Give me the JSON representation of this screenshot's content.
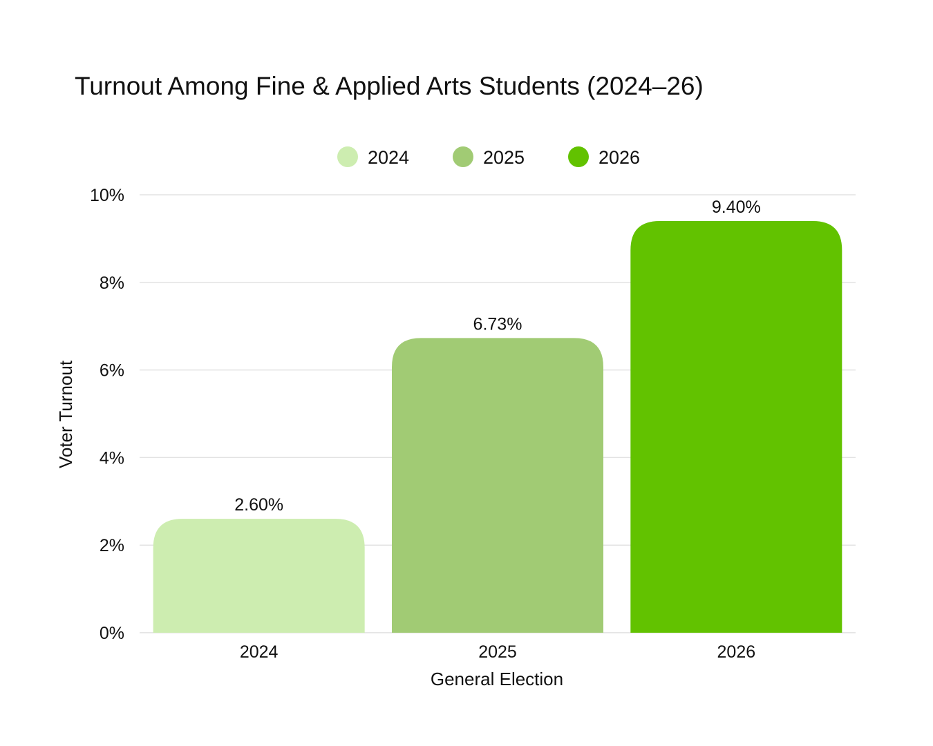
{
  "chart_data": {
    "type": "bar",
    "title": "Turnout Among Fine & Applied Arts Students (2024–26)",
    "xlabel": "General Election",
    "ylabel": "Voter Turnout",
    "categories": [
      "2024",
      "2025",
      "2026"
    ],
    "values": [
      2.6,
      6.73,
      9.4
    ],
    "value_labels": [
      "2.60%",
      "6.73%",
      "9.40%"
    ],
    "colors": [
      "#cdedb0",
      "#a1cb74",
      "#62c200"
    ],
    "ylim": [
      0,
      10
    ],
    "yticks": [
      0,
      2,
      4,
      6,
      8,
      10
    ],
    "ytick_labels": [
      "0%",
      "2%",
      "4%",
      "6%",
      "8%",
      "10%"
    ],
    "legend": {
      "position": "top",
      "entries": [
        "2024",
        "2025",
        "2026"
      ]
    },
    "grid": true
  }
}
